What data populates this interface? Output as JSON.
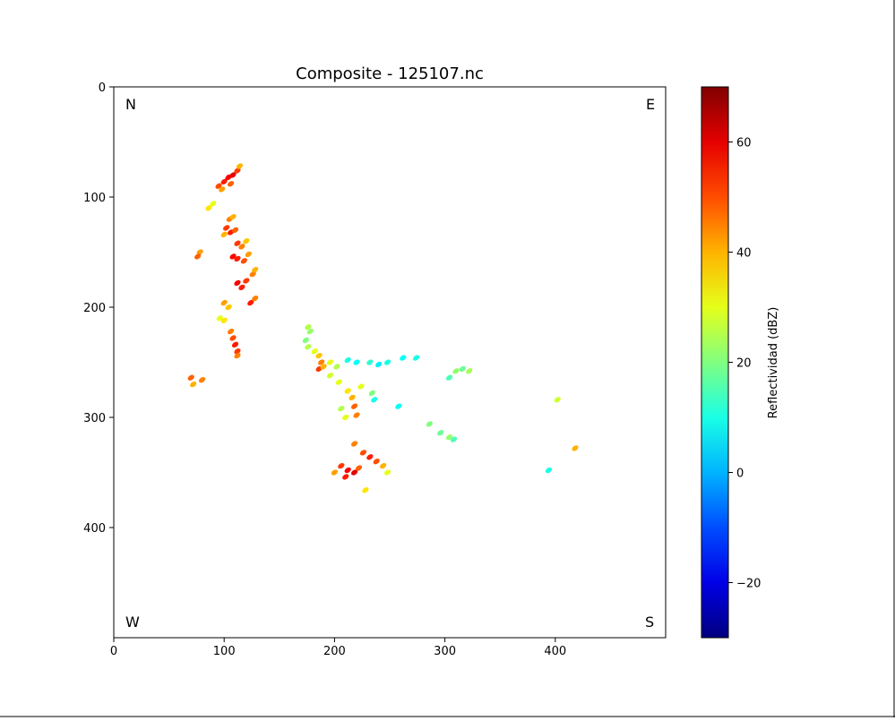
{
  "figure": {
    "title": "Composite - 125107.nc",
    "corner_labels": {
      "top_left": "N",
      "top_right": "E",
      "bottom_left": "W",
      "bottom_right": "S"
    }
  },
  "chart_data": {
    "type": "heatmap",
    "title": "Composite - 125107.nc",
    "xlabel": "",
    "ylabel": "",
    "xlim": [
      0,
      500
    ],
    "ylim": [
      500,
      0
    ],
    "x_ticks": [
      0,
      100,
      200,
      300,
      400
    ],
    "y_ticks": [
      0,
      100,
      200,
      300,
      400
    ],
    "x_tick_labels": [
      "0",
      "100",
      "200",
      "300",
      "400"
    ],
    "y_tick_labels": [
      "0",
      "100",
      "200",
      "300",
      "400"
    ],
    "y_axis_inverted": true,
    "grid": false,
    "background": "#ffffff",
    "colormap": "jet",
    "colorbar": {
      "label": "Reflectividad (dBZ)",
      "vmin": -30,
      "vmax": 70,
      "ticks": [
        -20,
        0,
        20,
        40,
        60
      ],
      "tick_labels": [
        "−20",
        "0",
        "20",
        "40",
        "60"
      ]
    },
    "echoes": [
      {
        "x": 95,
        "y": 90,
        "dbz": 50
      },
      {
        "x": 100,
        "y": 86,
        "dbz": 55
      },
      {
        "x": 104,
        "y": 82,
        "dbz": 58
      },
      {
        "x": 108,
        "y": 80,
        "dbz": 60
      },
      {
        "x": 112,
        "y": 76,
        "dbz": 52
      },
      {
        "x": 114,
        "y": 72,
        "dbz": 40
      },
      {
        "x": 98,
        "y": 93,
        "dbz": 42
      },
      {
        "x": 106,
        "y": 88,
        "dbz": 48
      },
      {
        "x": 86,
        "y": 110,
        "dbz": 35
      },
      {
        "x": 90,
        "y": 106,
        "dbz": 30
      },
      {
        "x": 105,
        "y": 120,
        "dbz": 45
      },
      {
        "x": 108,
        "y": 118,
        "dbz": 40
      },
      {
        "x": 102,
        "y": 128,
        "dbz": 52
      },
      {
        "x": 106,
        "y": 132,
        "dbz": 55
      },
      {
        "x": 110,
        "y": 130,
        "dbz": 48
      },
      {
        "x": 100,
        "y": 134,
        "dbz": 40
      },
      {
        "x": 112,
        "y": 142,
        "dbz": 52
      },
      {
        "x": 116,
        "y": 145,
        "dbz": 45
      },
      {
        "x": 120,
        "y": 140,
        "dbz": 38
      },
      {
        "x": 108,
        "y": 154,
        "dbz": 58
      },
      {
        "x": 112,
        "y": 156,
        "dbz": 55
      },
      {
        "x": 118,
        "y": 158,
        "dbz": 50
      },
      {
        "x": 122,
        "y": 152,
        "dbz": 42
      },
      {
        "x": 78,
        "y": 150,
        "dbz": 42
      },
      {
        "x": 76,
        "y": 154,
        "dbz": 48
      },
      {
        "x": 112,
        "y": 178,
        "dbz": 58
      },
      {
        "x": 116,
        "y": 182,
        "dbz": 55
      },
      {
        "x": 120,
        "y": 176,
        "dbz": 52
      },
      {
        "x": 126,
        "y": 170,
        "dbz": 45
      },
      {
        "x": 128,
        "y": 166,
        "dbz": 40
      },
      {
        "x": 124,
        "y": 196,
        "dbz": 55
      },
      {
        "x": 128,
        "y": 192,
        "dbz": 45
      },
      {
        "x": 100,
        "y": 196,
        "dbz": 42
      },
      {
        "x": 104,
        "y": 200,
        "dbz": 38
      },
      {
        "x": 96,
        "y": 210,
        "dbz": 30
      },
      {
        "x": 100,
        "y": 212,
        "dbz": 35
      },
      {
        "x": 106,
        "y": 222,
        "dbz": 45
      },
      {
        "x": 108,
        "y": 228,
        "dbz": 50
      },
      {
        "x": 110,
        "y": 234,
        "dbz": 55
      },
      {
        "x": 112,
        "y": 240,
        "dbz": 52
      },
      {
        "x": 112,
        "y": 244,
        "dbz": 45
      },
      {
        "x": 70,
        "y": 264,
        "dbz": 48
      },
      {
        "x": 80,
        "y": 266,
        "dbz": 45
      },
      {
        "x": 72,
        "y": 270,
        "dbz": 40
      },
      {
        "x": 176,
        "y": 218,
        "dbz": 25
      },
      {
        "x": 178,
        "y": 222,
        "dbz": 22
      },
      {
        "x": 174,
        "y": 230,
        "dbz": 20
      },
      {
        "x": 176,
        "y": 236,
        "dbz": 25
      },
      {
        "x": 182,
        "y": 240,
        "dbz": 30
      },
      {
        "x": 186,
        "y": 244,
        "dbz": 38
      },
      {
        "x": 188,
        "y": 250,
        "dbz": 45
      },
      {
        "x": 186,
        "y": 256,
        "dbz": 52
      },
      {
        "x": 190,
        "y": 254,
        "dbz": 40
      },
      {
        "x": 196,
        "y": 250,
        "dbz": 30
      },
      {
        "x": 202,
        "y": 254,
        "dbz": 25
      },
      {
        "x": 212,
        "y": 248,
        "dbz": 10
      },
      {
        "x": 220,
        "y": 250,
        "dbz": 8
      },
      {
        "x": 232,
        "y": 250,
        "dbz": 12
      },
      {
        "x": 240,
        "y": 252,
        "dbz": 6
      },
      {
        "x": 248,
        "y": 250,
        "dbz": 10
      },
      {
        "x": 262,
        "y": 246,
        "dbz": 8
      },
      {
        "x": 274,
        "y": 246,
        "dbz": 10
      },
      {
        "x": 196,
        "y": 262,
        "dbz": 28
      },
      {
        "x": 204,
        "y": 268,
        "dbz": 30
      },
      {
        "x": 212,
        "y": 276,
        "dbz": 35
      },
      {
        "x": 216,
        "y": 282,
        "dbz": 40
      },
      {
        "x": 218,
        "y": 290,
        "dbz": 48
      },
      {
        "x": 220,
        "y": 298,
        "dbz": 45
      },
      {
        "x": 224,
        "y": 272,
        "dbz": 30
      },
      {
        "x": 234,
        "y": 278,
        "dbz": 20
      },
      {
        "x": 206,
        "y": 292,
        "dbz": 25
      },
      {
        "x": 210,
        "y": 300,
        "dbz": 30
      },
      {
        "x": 236,
        "y": 284,
        "dbz": 10
      },
      {
        "x": 258,
        "y": 290,
        "dbz": 8
      },
      {
        "x": 310,
        "y": 258,
        "dbz": 22
      },
      {
        "x": 316,
        "y": 256,
        "dbz": 18
      },
      {
        "x": 322,
        "y": 258,
        "dbz": 24
      },
      {
        "x": 304,
        "y": 264,
        "dbz": 15
      },
      {
        "x": 286,
        "y": 306,
        "dbz": 20
      },
      {
        "x": 296,
        "y": 314,
        "dbz": 18
      },
      {
        "x": 304,
        "y": 318,
        "dbz": 22
      },
      {
        "x": 308,
        "y": 320,
        "dbz": 15
      },
      {
        "x": 402,
        "y": 284,
        "dbz": 28
      },
      {
        "x": 418,
        "y": 328,
        "dbz": 40
      },
      {
        "x": 394,
        "y": 348,
        "dbz": 10
      },
      {
        "x": 218,
        "y": 324,
        "dbz": 45
      },
      {
        "x": 206,
        "y": 344,
        "dbz": 52
      },
      {
        "x": 212,
        "y": 348,
        "dbz": 58
      },
      {
        "x": 218,
        "y": 350,
        "dbz": 60
      },
      {
        "x": 210,
        "y": 354,
        "dbz": 55
      },
      {
        "x": 222,
        "y": 346,
        "dbz": 48
      },
      {
        "x": 200,
        "y": 350,
        "dbz": 42
      },
      {
        "x": 226,
        "y": 332,
        "dbz": 50
      },
      {
        "x": 232,
        "y": 336,
        "dbz": 55
      },
      {
        "x": 238,
        "y": 340,
        "dbz": 50
      },
      {
        "x": 244,
        "y": 344,
        "dbz": 40
      },
      {
        "x": 248,
        "y": 350,
        "dbz": 30
      },
      {
        "x": 228,
        "y": 366,
        "dbz": 35
      }
    ]
  }
}
